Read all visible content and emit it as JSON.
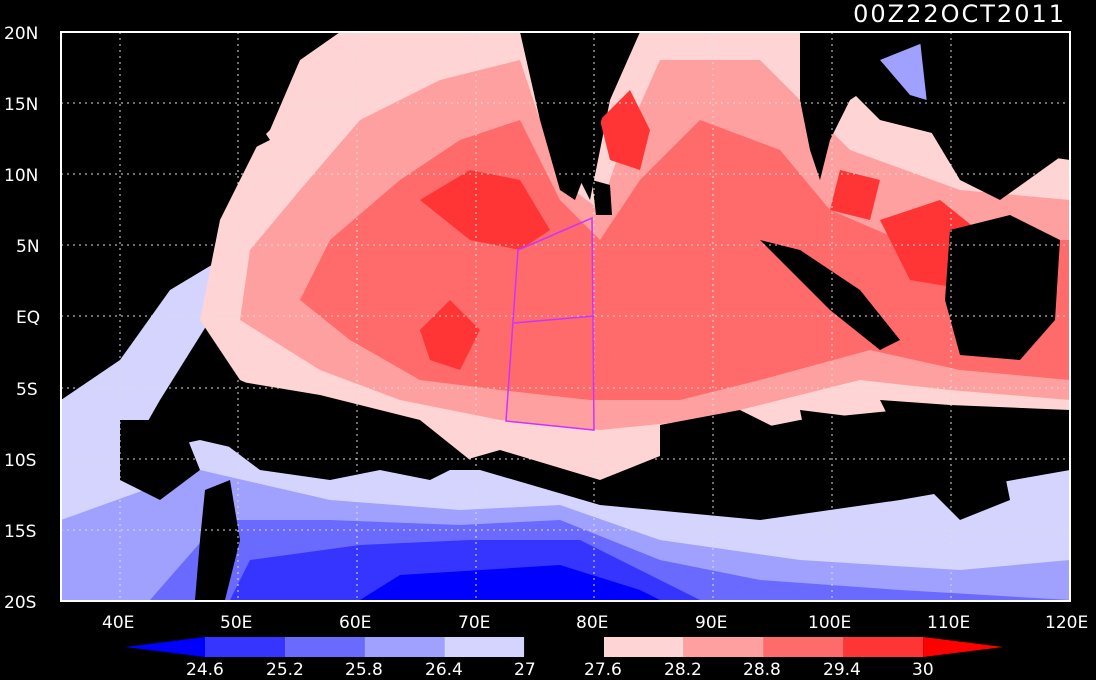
{
  "title": "00Z22OCT2011",
  "lat_labels": [
    "20N",
    "15N",
    "10N",
    "5N",
    "EQ",
    "5S",
    "10S",
    "15S",
    "20S"
  ],
  "lon_labels": [
    "40E",
    "50E",
    "60E",
    "70E",
    "80E",
    "90E",
    "100E",
    "110E",
    "120E"
  ],
  "colorbar": {
    "ticks": [
      "24.6",
      "25.2",
      "25.8",
      "26.4",
      "27",
      "27.6",
      "28.2",
      "28.8",
      "29.4",
      "30"
    ],
    "colors": [
      "#0000ff",
      "#3535ff",
      "#6a6aff",
      "#a0a0ff",
      "#d4d4ff",
      "#000000",
      "#ffd4d4",
      "#ffa0a0",
      "#ff6a6a",
      "#ff3535",
      "#ff0000"
    ]
  }
}
